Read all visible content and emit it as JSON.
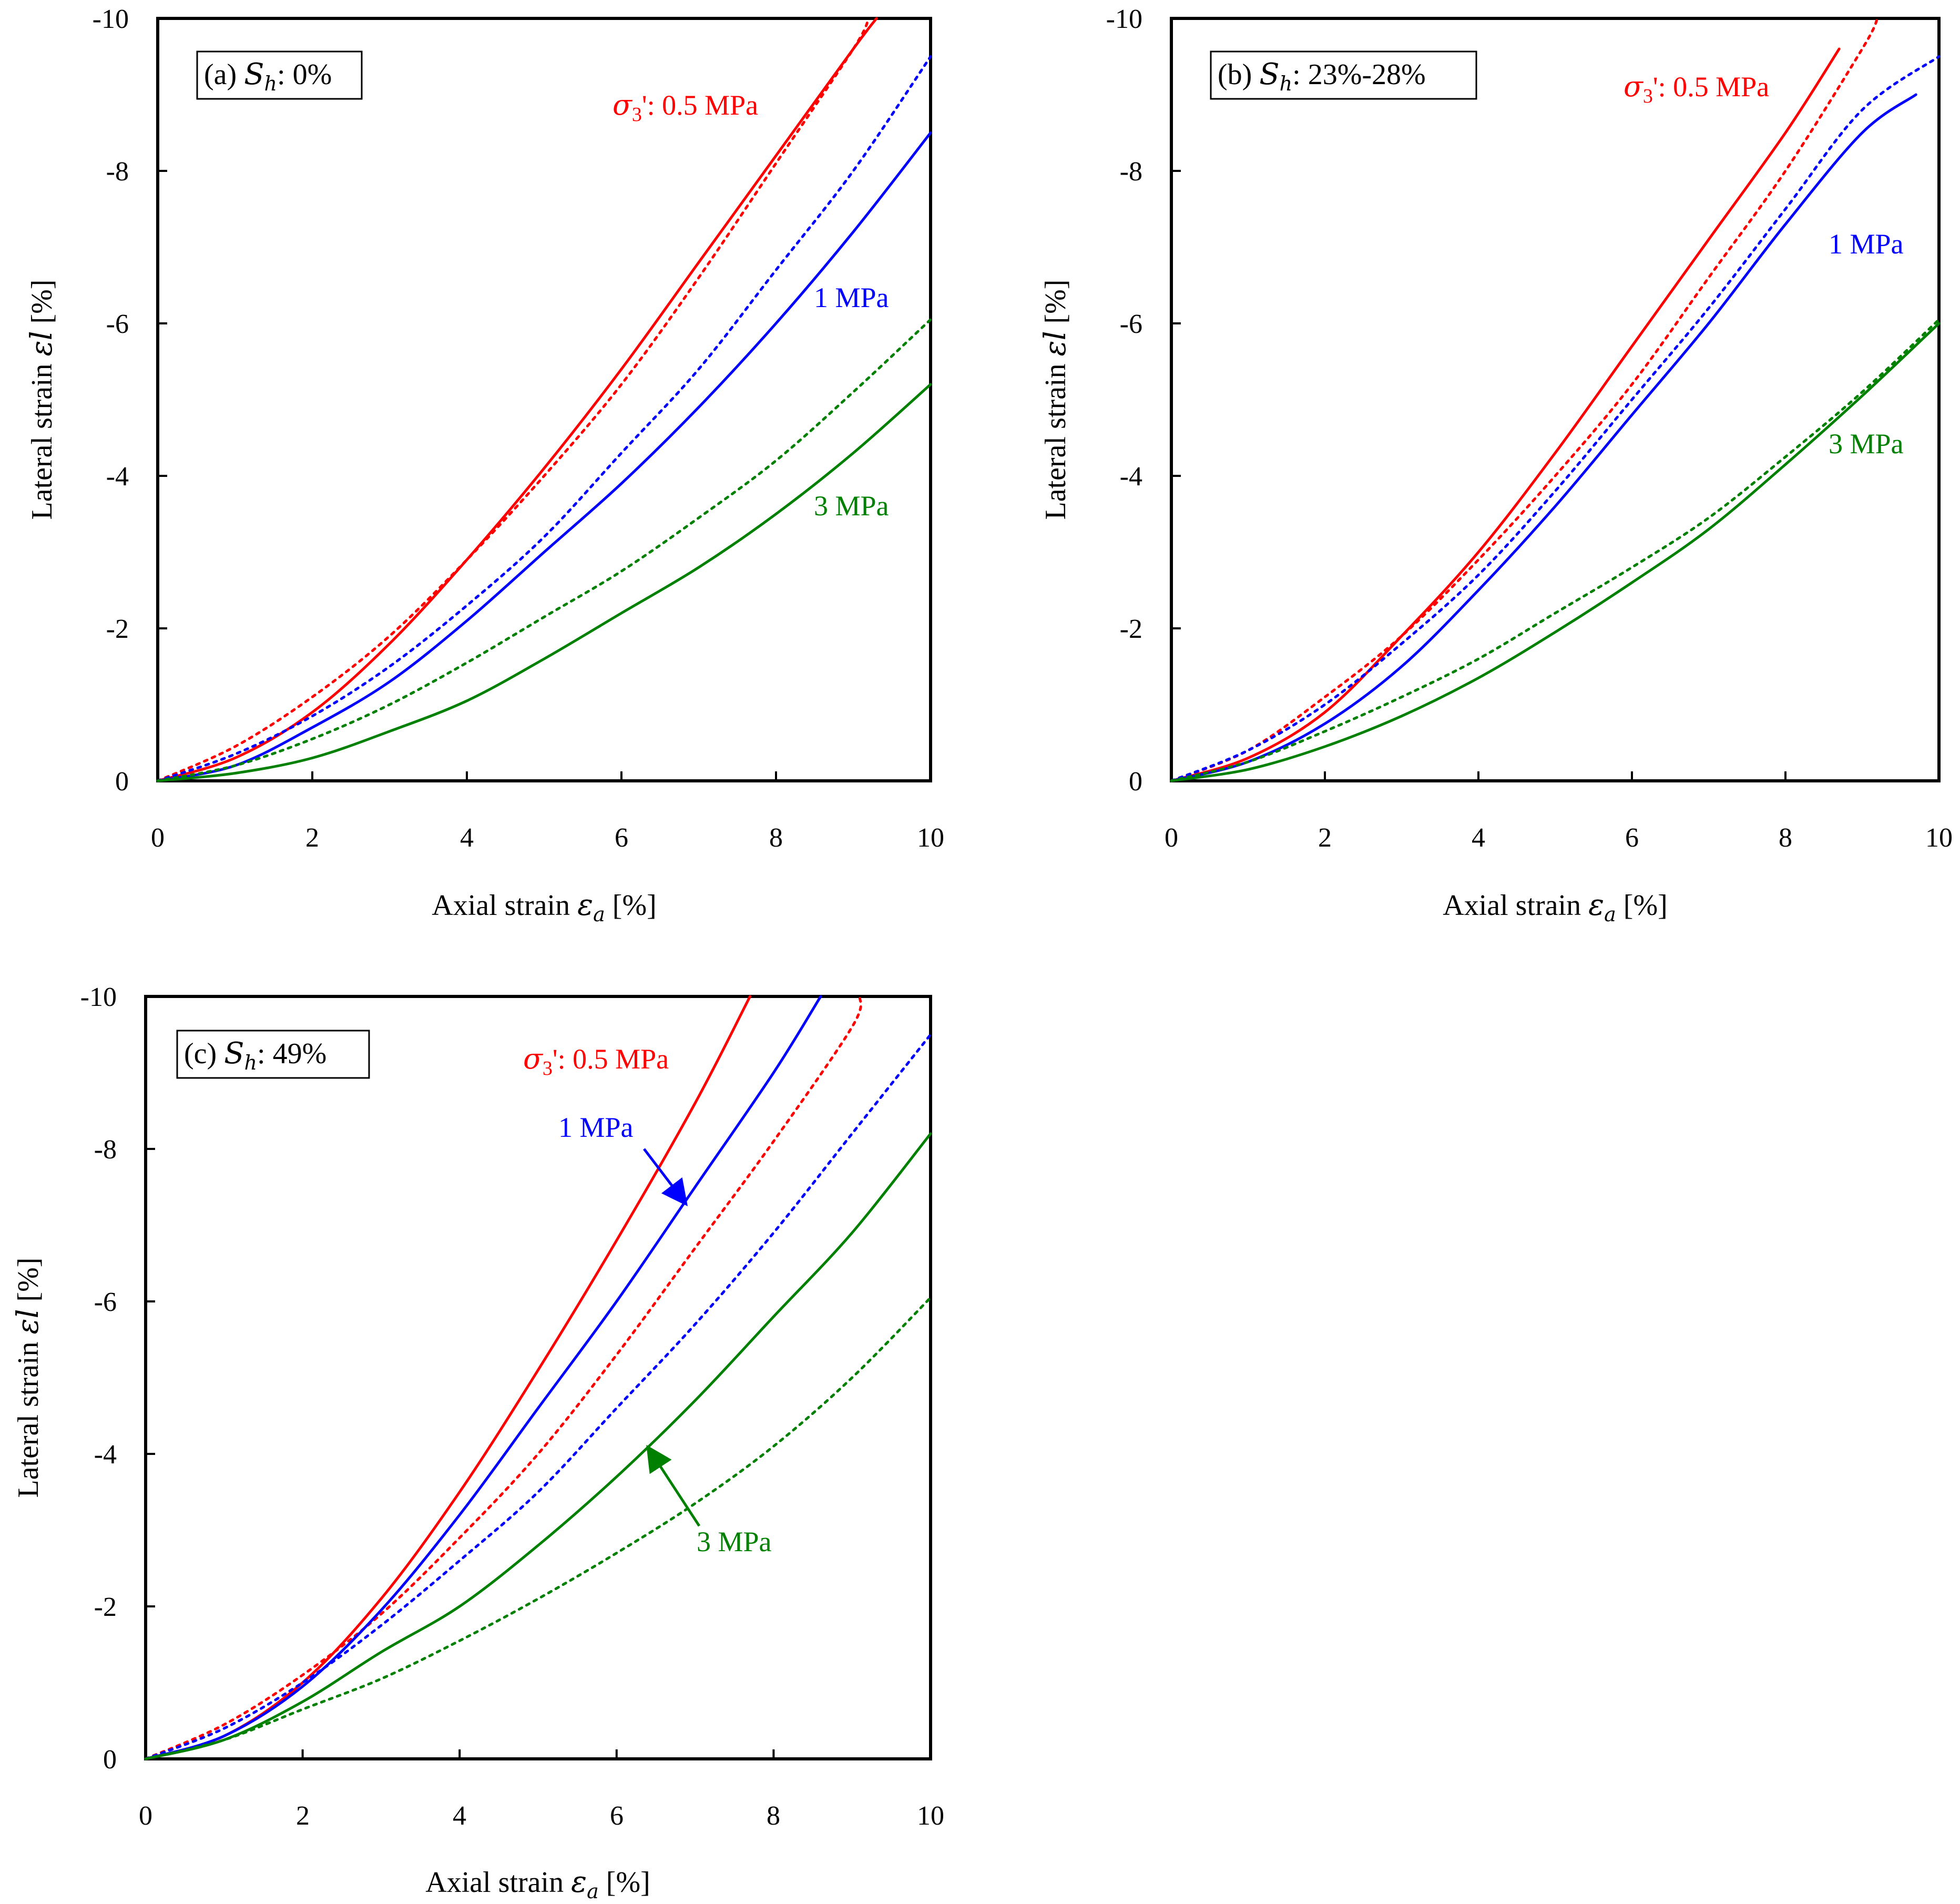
{
  "figure": {
    "panels": [
      {
        "id": "a",
        "label_prefix": "(a)",
        "label_symbol": "S",
        "label_sub": "h",
        "label_value": ": 0%",
        "xlabel_text": "Axial strain",
        "xlabel_symbol": "ε",
        "xlabel_sub": "a",
        "xlabel_unit": " [%]",
        "ylabel_text": "Lateral strain",
        "ylabel_symbol": "εl",
        "ylabel_unit": " [%]",
        "xticks": [
          "0",
          "2",
          "4",
          "6",
          "8",
          "10"
        ],
        "yticks": [
          "0",
          "-2",
          "-4",
          "-6",
          "-8",
          "-10"
        ],
        "sigma_symbol": "σ",
        "sigma_sub": "3",
        "sigma_value": "': 0.5 MPa",
        "label_1mpa": "1 MPa",
        "label_3mpa": "3 MPa"
      },
      {
        "id": "b",
        "label_prefix": "(b)",
        "label_symbol": "S",
        "label_sub": "h",
        "label_value": ": 23%-28%",
        "xlabel_text": "Axial strain",
        "xlabel_symbol": "ε",
        "xlabel_sub": "a",
        "xlabel_unit": " [%]",
        "ylabel_text": "Lateral strain",
        "ylabel_symbol": "εl",
        "ylabel_unit": " [%]",
        "xticks": [
          "0",
          "2",
          "4",
          "6",
          "8",
          "10"
        ],
        "yticks": [
          "0",
          "-2",
          "-4",
          "-6",
          "-8",
          "-10"
        ],
        "sigma_symbol": "σ",
        "sigma_sub": "3",
        "sigma_value": "': 0.5 MPa",
        "label_1mpa": "1 MPa",
        "label_3mpa": "3 MPa"
      },
      {
        "id": "c",
        "label_prefix": "(c)",
        "label_symbol": "S",
        "label_sub": "h",
        "label_value": ": 49%",
        "xlabel_text": "Axial strain",
        "xlabel_symbol": "ε",
        "xlabel_sub": "a",
        "xlabel_unit": " [%]",
        "ylabel_text": "Lateral strain",
        "ylabel_symbol": "εl",
        "ylabel_unit": " [%]",
        "xticks": [
          "0",
          "2",
          "4",
          "6",
          "8",
          "10"
        ],
        "yticks": [
          "0",
          "-2",
          "-4",
          "-6",
          "-8",
          "-10"
        ],
        "sigma_symbol": "σ",
        "sigma_sub": "3",
        "sigma_value": "': 0.5 MPa",
        "label_1mpa": "1 MPa",
        "label_3mpa": "3 MPa"
      }
    ]
  },
  "chart_data": [
    {
      "type": "line",
      "panel": "a",
      "title": "(a) Sh: 0%",
      "xlabel": "Axial strain εa [%]",
      "ylabel": "Lateral strain εl [%]",
      "xlim": [
        0,
        10
      ],
      "ylim": [
        0,
        -10
      ],
      "grid": false,
      "series": [
        {
          "name": "0.5 MPa (solid)",
          "confining_MPa": 0.5,
          "style": "solid",
          "color": "#ff0000",
          "x": [
            0,
            1,
            2,
            3,
            4,
            5,
            6,
            7,
            8,
            9,
            9.3
          ],
          "y": [
            0,
            -0.3,
            -0.9,
            -1.8,
            -2.9,
            -4.1,
            -5.4,
            -6.8,
            -8.2,
            -9.6,
            -10
          ]
        },
        {
          "name": "0.5 MPa (dotted)",
          "confining_MPa": 0.5,
          "style": "dotted",
          "color": "#ff0000",
          "x": [
            0,
            1,
            2,
            3,
            4,
            5,
            6,
            7,
            8,
            9,
            9.2
          ],
          "y": [
            0,
            -0.45,
            -1.1,
            -1.9,
            -2.9,
            -4.0,
            -5.2,
            -6.6,
            -8.1,
            -9.6,
            -10
          ]
        },
        {
          "name": "1 MPa (solid)",
          "confining_MPa": 1,
          "style": "solid",
          "color": "#0000ff",
          "x": [
            0,
            1,
            2,
            3,
            4,
            5,
            6,
            7,
            8,
            9,
            10
          ],
          "y": [
            0,
            -0.2,
            -0.7,
            -1.3,
            -2.1,
            -3.0,
            -3.9,
            -4.9,
            -6.0,
            -7.2,
            -8.5
          ]
        },
        {
          "name": "1 MPa (dotted)",
          "confining_MPa": 1,
          "style": "dotted",
          "color": "#0000ff",
          "x": [
            0,
            1,
            2,
            3,
            4,
            5,
            6,
            7,
            8,
            9,
            10
          ],
          "y": [
            0,
            -0.35,
            -0.85,
            -1.5,
            -2.3,
            -3.2,
            -4.3,
            -5.4,
            -6.7,
            -8.0,
            -9.5
          ]
        },
        {
          "name": "3 MPa (solid)",
          "confining_MPa": 3,
          "style": "solid",
          "color": "#008000",
          "x": [
            0,
            1,
            2,
            3,
            4,
            5,
            6,
            7,
            8,
            9,
            10
          ],
          "y": [
            0,
            -0.1,
            -0.3,
            -0.65,
            -1.05,
            -1.6,
            -2.2,
            -2.8,
            -3.5,
            -4.3,
            -5.2
          ]
        },
        {
          "name": "3 MPa (dotted)",
          "confining_MPa": 3,
          "style": "dotted",
          "color": "#008000",
          "x": [
            0,
            1,
            2,
            3,
            4,
            5,
            6,
            7,
            8,
            9,
            10
          ],
          "y": [
            0,
            -0.2,
            -0.55,
            -1.0,
            -1.55,
            -2.15,
            -2.75,
            -3.45,
            -4.2,
            -5.1,
            -6.05
          ]
        }
      ],
      "annotations": [
        "σ3': 0.5 MPa",
        "1 MPa",
        "3 MPa"
      ]
    },
    {
      "type": "line",
      "panel": "b",
      "title": "(b) Sh: 23%-28%",
      "xlabel": "Axial strain εa [%]",
      "ylabel": "Lateral strain εl [%]",
      "xlim": [
        0,
        10
      ],
      "ylim": [
        0,
        -10
      ],
      "grid": false,
      "series": [
        {
          "name": "0.5 MPa (solid)",
          "confining_MPa": 0.5,
          "style": "solid",
          "color": "#ff0000",
          "x": [
            0,
            1,
            2,
            3,
            4,
            5,
            6,
            7,
            8,
            8.7
          ],
          "y": [
            0,
            -0.3,
            -0.9,
            -1.9,
            -3.0,
            -4.3,
            -5.7,
            -7.1,
            -8.5,
            -9.6
          ]
        },
        {
          "name": "0.5 MPa (dotted)",
          "confining_MPa": 0.5,
          "style": "dotted",
          "color": "#ff0000",
          "x": [
            0,
            1,
            2,
            3,
            4,
            5,
            6,
            7,
            8,
            9,
            9.2
          ],
          "y": [
            0,
            -0.4,
            -1.1,
            -1.9,
            -2.9,
            -4.0,
            -5.2,
            -6.6,
            -8.0,
            -9.6,
            -10
          ]
        },
        {
          "name": "1 MPa (solid)",
          "confining_MPa": 1,
          "style": "solid",
          "color": "#0000ff",
          "x": [
            0,
            1,
            2,
            3,
            4,
            5,
            6,
            7,
            8,
            9,
            9.7
          ],
          "y": [
            0,
            -0.25,
            -0.75,
            -1.5,
            -2.5,
            -3.6,
            -4.8,
            -6.0,
            -7.3,
            -8.5,
            -9.0
          ]
        },
        {
          "name": "1 MPa (dotted)",
          "confining_MPa": 1,
          "style": "dotted",
          "color": "#0000ff",
          "x": [
            0,
            1,
            2,
            3,
            4,
            5,
            6,
            7,
            8,
            9,
            10
          ],
          "y": [
            0,
            -0.4,
            -1.0,
            -1.8,
            -2.7,
            -3.8,
            -5.0,
            -6.2,
            -7.5,
            -8.8,
            -9.5
          ]
        },
        {
          "name": "3 MPa (solid)",
          "confining_MPa": 3,
          "style": "solid",
          "color": "#008000",
          "x": [
            0,
            1,
            2,
            3,
            4,
            5,
            6,
            7,
            8,
            9,
            10
          ],
          "y": [
            0,
            -0.15,
            -0.45,
            -0.85,
            -1.35,
            -1.95,
            -2.6,
            -3.3,
            -4.15,
            -5.05,
            -6.0
          ]
        },
        {
          "name": "3 MPa (dotted)",
          "confining_MPa": 3,
          "style": "dotted",
          "color": "#008000",
          "x": [
            0,
            1,
            2,
            3,
            4,
            5,
            6,
            7,
            8,
            9,
            10
          ],
          "y": [
            0,
            -0.25,
            -0.65,
            -1.1,
            -1.6,
            -2.2,
            -2.8,
            -3.45,
            -4.25,
            -5.1,
            -6.05
          ]
        }
      ],
      "annotations": [
        "σ3': 0.5 MPa",
        "1 MPa",
        "3 MPa"
      ]
    },
    {
      "type": "line",
      "panel": "c",
      "title": "(c) Sh: 49%",
      "xlabel": "Axial strain εa [%]",
      "ylabel": "Lateral strain εl [%]",
      "xlim": [
        0,
        10
      ],
      "ylim": [
        0,
        -10
      ],
      "grid": false,
      "series": [
        {
          "name": "0.5 MPa (solid)",
          "confining_MPa": 0.5,
          "style": "solid",
          "color": "#ff0000",
          "x": [
            0,
            1,
            2,
            3,
            4,
            5,
            6,
            7,
            7.7
          ],
          "y": [
            0,
            -0.3,
            -1.0,
            -2.1,
            -3.5,
            -5.1,
            -6.8,
            -8.6,
            -10
          ]
        },
        {
          "name": "0.5 MPa (dotted)",
          "confining_MPa": 0.5,
          "style": "dotted",
          "color": "#ff0000",
          "x": [
            0,
            1,
            2,
            3,
            4,
            5,
            6,
            7,
            8,
            9,
            9.1
          ],
          "y": [
            0,
            -0.45,
            -1.1,
            -1.9,
            -2.9,
            -4.0,
            -5.3,
            -6.7,
            -8.1,
            -9.6,
            -10
          ]
        },
        {
          "name": "1 MPa (solid)",
          "confining_MPa": 1,
          "style": "solid",
          "color": "#0000ff",
          "x": [
            0,
            1,
            2,
            3,
            4,
            5,
            6,
            7,
            8,
            8.6
          ],
          "y": [
            0,
            -0.3,
            -0.95,
            -1.95,
            -3.2,
            -4.6,
            -6.0,
            -7.5,
            -9.0,
            -10
          ]
        },
        {
          "name": "1 MPa (dotted)",
          "confining_MPa": 1,
          "style": "dotted",
          "color": "#0000ff",
          "x": [
            0,
            1,
            2,
            3,
            4,
            5,
            6,
            7,
            8,
            9,
            10
          ],
          "y": [
            0,
            -0.4,
            -1.0,
            -1.75,
            -2.6,
            -3.5,
            -4.6,
            -5.7,
            -6.9,
            -8.2,
            -9.5
          ]
        },
        {
          "name": "3 MPa (solid)",
          "confining_MPa": 3,
          "style": "solid",
          "color": "#008000",
          "x": [
            0,
            1,
            2,
            3,
            4,
            5,
            6,
            7,
            8,
            9,
            10
          ],
          "y": [
            0,
            -0.25,
            -0.75,
            -1.4,
            -2.0,
            -2.8,
            -3.7,
            -4.7,
            -5.8,
            -6.9,
            -8.2
          ]
        },
        {
          "name": "3 MPa (dotted)",
          "confining_MPa": 3,
          "style": "dotted",
          "color": "#008000",
          "x": [
            0,
            1,
            2,
            3,
            4,
            5,
            6,
            7,
            8,
            9,
            10
          ],
          "y": [
            0,
            -0.25,
            -0.65,
            -1.05,
            -1.55,
            -2.1,
            -2.7,
            -3.35,
            -4.1,
            -5.0,
            -6.05
          ]
        }
      ],
      "annotations": [
        "σ3': 0.5 MPa",
        "1 MPa",
        "3 MPa"
      ]
    }
  ]
}
